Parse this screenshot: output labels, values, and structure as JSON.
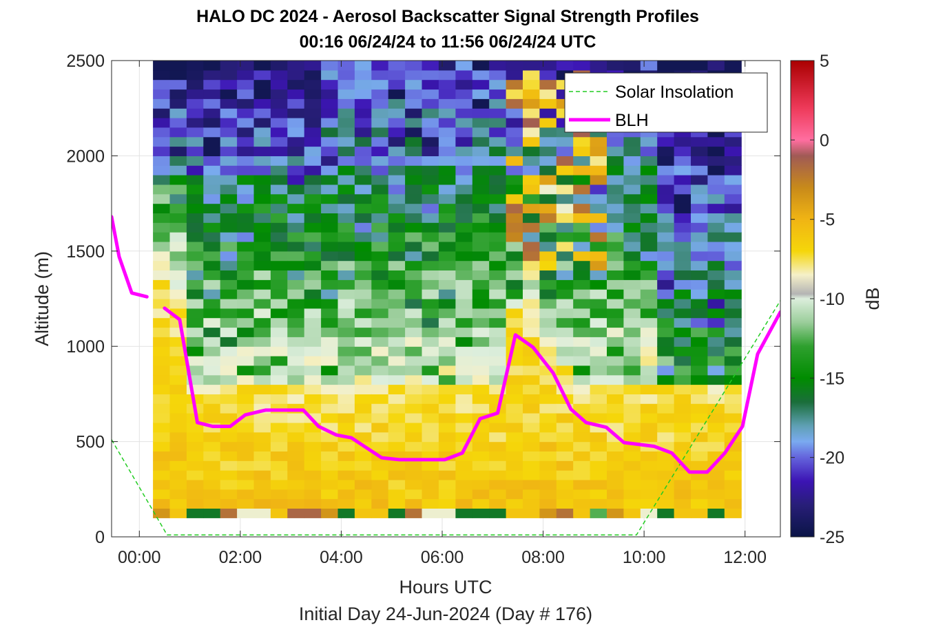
{
  "chart_data": {
    "type": "heatmap",
    "title": "HALO DC 2024 - Aerosol Backscatter Signal Strength Profiles",
    "subtitle": "00:16 06/24/24 to 11:56 06/24/24  UTC",
    "xlabel": "Hours UTC",
    "ylabel": "Altitude (m)",
    "footer": "Initial Day 24-Jun-2024 (Day # 176)",
    "xlim": [
      -0.55,
      12.7
    ],
    "ylim": [
      0,
      2500
    ],
    "xticks": [
      0,
      2,
      4,
      6,
      8,
      10,
      12
    ],
    "xtick_labels": [
      "00:00",
      "02:00",
      "04:00",
      "06:00",
      "08:00",
      "10:00",
      "12:00"
    ],
    "yticks": [
      0,
      500,
      1000,
      1500,
      2000,
      2500
    ],
    "ytick_labels": [
      "0",
      "500",
      "1000",
      "1500",
      "2000",
      "2500"
    ],
    "grid": true,
    "colorbar": {
      "label": "dB",
      "range": [
        -25,
        5
      ],
      "ticks": [
        5,
        0,
        -5,
        -10,
        -15,
        -20,
        -25
      ],
      "tick_labels": [
        "5",
        "0",
        "-5",
        "-10",
        "-15",
        "-20",
        "-25"
      ]
    },
    "heatmap": {
      "x_start": 0.27,
      "x_end": 11.93,
      "y_start": 100,
      "y_end": 2500,
      "dx_hours": 0.333,
      "dz_m": 50
    },
    "legend": {
      "placement": "top-right",
      "entries": [
        "Solar Insolation",
        "BLH"
      ]
    },
    "series": [
      {
        "name": "BLH",
        "color": "#ff00ff",
        "segments": [
          [
            [
              -0.55,
              1680
            ],
            [
              -0.4,
              1470
            ],
            [
              -0.15,
              1280
            ],
            [
              0.15,
              1260
            ]
          ],
          [
            [
              0.5,
              1200
            ],
            [
              0.8,
              1140
            ],
            [
              1.15,
              600
            ],
            [
              1.45,
              580
            ],
            [
              1.8,
              580
            ],
            [
              2.1,
              640
            ],
            [
              2.5,
              665
            ],
            [
              3.25,
              665
            ],
            [
              3.55,
              580
            ],
            [
              3.9,
              535
            ],
            [
              4.2,
              520
            ],
            [
              4.8,
              415
            ],
            [
              5.15,
              405
            ],
            [
              5.5,
              405
            ],
            [
              6.05,
              405
            ],
            [
              6.4,
              440
            ],
            [
              6.75,
              620
            ],
            [
              7.1,
              650
            ],
            [
              7.45,
              1060
            ],
            [
              7.8,
              995
            ],
            [
              8.2,
              860
            ],
            [
              8.55,
              670
            ],
            [
              8.85,
              600
            ],
            [
              9.25,
              575
            ],
            [
              9.6,
              495
            ],
            [
              10.2,
              475
            ],
            [
              10.55,
              440
            ],
            [
              10.9,
              340
            ],
            [
              11.25,
              340
            ],
            [
              11.6,
              440
            ],
            [
              11.95,
              580
            ],
            [
              12.25,
              960
            ],
            [
              12.7,
              1180
            ]
          ]
        ]
      },
      {
        "name": "Solar Insolation",
        "color": "#22cc22",
        "points": [
          [
            -0.55,
            510
          ],
          [
            0.55,
            10
          ],
          [
            9.85,
            10
          ],
          [
            12.7,
            1240
          ]
        ]
      }
    ]
  }
}
